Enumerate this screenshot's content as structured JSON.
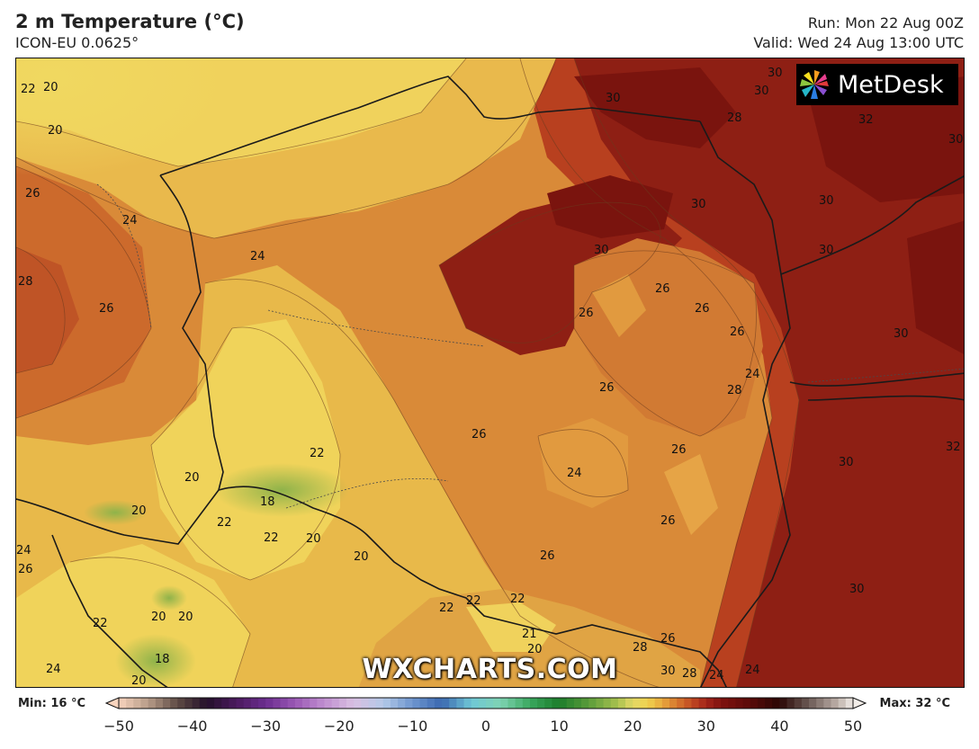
{
  "header": {
    "title": "2 m Temperature (°C)",
    "subtitle": "ICON-EU 0.0625°",
    "run": "Run: Mon 22 Aug 00Z",
    "valid": "Valid: Wed 24 Aug 13:00 UTC"
  },
  "branding": {
    "logo_text": "MetDesk",
    "watermark": "WXCHARTS.COM"
  },
  "legend": {
    "min_label": "Min: 16 °C",
    "max_label": "Max: 32 °C",
    "ticks": [
      "−50",
      "−40",
      "−30",
      "−20",
      "−10",
      "0",
      "10",
      "20",
      "30",
      "40",
      "50"
    ],
    "range": [
      -50,
      50
    ],
    "stops": [
      {
        "v": -50,
        "c": "#f7d3bd"
      },
      {
        "v": -46,
        "c": "#b79c88"
      },
      {
        "v": -42,
        "c": "#5e4b44"
      },
      {
        "v": -38,
        "c": "#24102a"
      },
      {
        "v": -34,
        "c": "#4b1a5e"
      },
      {
        "v": -30,
        "c": "#6b2d8f"
      },
      {
        "v": -26,
        "c": "#9a58b5"
      },
      {
        "v": -22,
        "c": "#c08fd0"
      },
      {
        "v": -18,
        "c": "#d9c0e2"
      },
      {
        "v": -14,
        "c": "#b4c9e8"
      },
      {
        "v": -10,
        "c": "#6e96cf"
      },
      {
        "v": -6,
        "c": "#3b68b0"
      },
      {
        "v": -2,
        "c": "#6fc7d6"
      },
      {
        "v": 2,
        "c": "#7fd3b3"
      },
      {
        "v": 6,
        "c": "#3aa75e"
      },
      {
        "v": 10,
        "c": "#1c7d2b"
      },
      {
        "v": 14,
        "c": "#5b9c3a"
      },
      {
        "v": 18,
        "c": "#a9c24f"
      },
      {
        "v": 20,
        "c": "#e3d867"
      },
      {
        "v": 22,
        "c": "#f0d24f"
      },
      {
        "v": 24,
        "c": "#e8a83c"
      },
      {
        "v": 26,
        "c": "#d7782e"
      },
      {
        "v": 28,
        "c": "#c24a22"
      },
      {
        "v": 30,
        "c": "#a3241a"
      },
      {
        "v": 32,
        "c": "#80120f"
      },
      {
        "v": 36,
        "c": "#5a0a08"
      },
      {
        "v": 40,
        "c": "#2a0605"
      },
      {
        "v": 44,
        "c": "#6b5a55"
      },
      {
        "v": 48,
        "c": "#bfb2ab"
      },
      {
        "v": 50,
        "c": "#f2ede8"
      }
    ]
  },
  "map": {
    "contour_labels": [
      "22",
      "20",
      "20",
      "26",
      "24",
      "28",
      "26",
      "24",
      "30",
      "30",
      "28",
      "32",
      "30",
      "30",
      "30",
      "30",
      "26",
      "26",
      "26",
      "26",
      "30",
      "28",
      "26",
      "26",
      "26",
      "24",
      "26",
      "22",
      "20",
      "18",
      "20",
      "22",
      "22",
      "20",
      "20",
      "26",
      "22",
      "22",
      "22",
      "20",
      "20",
      "22",
      "18",
      "24",
      "24",
      "20",
      "21",
      "20",
      "28",
      "26",
      "30",
      "28",
      "24",
      "24",
      "30",
      "30",
      "30",
      "30",
      "32",
      "26",
      "24"
    ]
  }
}
